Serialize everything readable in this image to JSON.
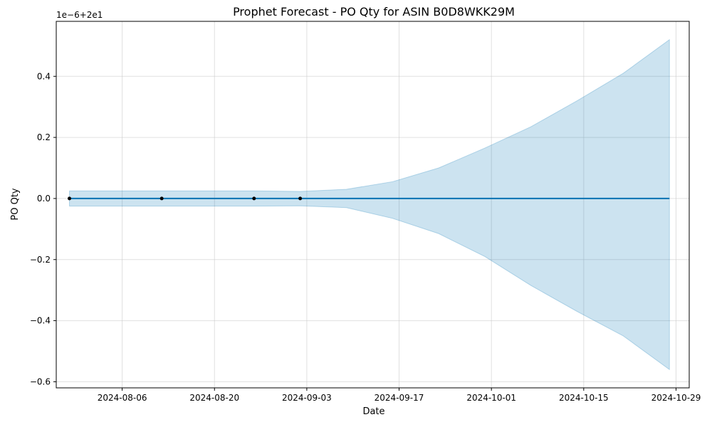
{
  "chart_data": {
    "type": "line",
    "title": "Prophet Forecast - PO Qty for ASIN B0D8WKK29M",
    "xlabel": "Date",
    "ylabel": "PO Qty",
    "offset_text": "1e−6+2e1",
    "x_ticks": [
      "2024-08-06",
      "2024-08-20",
      "2024-09-03",
      "2024-09-17",
      "2024-10-01",
      "2024-10-15",
      "2024-10-29"
    ],
    "y_ticks": [
      -0.6,
      -0.4,
      -0.2,
      0.0,
      0.2,
      0.4
    ],
    "y_tick_labels": [
      "−0.6",
      "−0.4",
      "−0.2",
      "0.0",
      "0.2",
      "0.4"
    ],
    "xlim": [
      "2024-07-27",
      "2024-10-31"
    ],
    "ylim": [
      -0.62,
      0.58
    ],
    "grid": true,
    "colors": {
      "forecast_line": "#0072b2",
      "uncertainty_band": "#0072b2",
      "observed_points": "#000000",
      "grid": "#cccccc"
    },
    "series": [
      {
        "kind": "forecast",
        "x": [
          "2024-07-29",
          "2024-08-12",
          "2024-08-26",
          "2024-09-02",
          "2024-09-09",
          "2024-09-16",
          "2024-09-23",
          "2024-09-30",
          "2024-10-07",
          "2024-10-14",
          "2024-10-21",
          "2024-10-28"
        ],
        "yhat": [
          0,
          0,
          0,
          0,
          0,
          0,
          0,
          0,
          0,
          0,
          0,
          0
        ],
        "yhat_upper": [
          0.025,
          0.025,
          0.025,
          0.023,
          0.03,
          0.055,
          0.1,
          0.165,
          0.235,
          0.32,
          0.41,
          0.52
        ],
        "yhat_lower": [
          -0.025,
          -0.025,
          -0.025,
          -0.024,
          -0.03,
          -0.065,
          -0.115,
          -0.19,
          -0.285,
          -0.37,
          -0.45,
          -0.56
        ]
      },
      {
        "kind": "observed",
        "x": [
          "2024-07-29",
          "2024-08-12",
          "2024-08-26",
          "2024-09-02"
        ],
        "y": [
          0,
          0,
          0,
          0
        ]
      }
    ]
  }
}
